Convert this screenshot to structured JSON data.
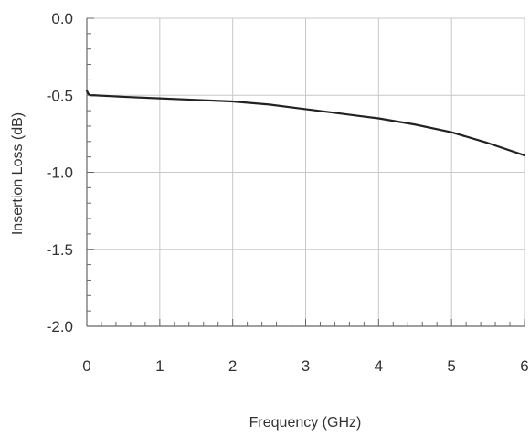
{
  "chart_data": {
    "type": "line",
    "title": "",
    "xlabel": "Frequency (GHz)",
    "ylabel": "Insertion Loss (dB)",
    "xlim": [
      0,
      6
    ],
    "ylim": [
      -2.0,
      0.0
    ],
    "x_ticks": [
      0,
      1,
      2,
      3,
      4,
      5,
      6
    ],
    "x_tick_labels": [
      "0",
      "1",
      "2",
      "3",
      "4",
      "5",
      "6"
    ],
    "y_ticks": [
      0.0,
      -0.5,
      -1.0,
      -1.5,
      -2.0
    ],
    "y_tick_labels": [
      "0.0",
      "-0.5",
      "-1.0",
      "-1.5",
      "-2.0"
    ],
    "grid": true,
    "series": [
      {
        "x": [
          0.0,
          0.02,
          0.05,
          0.1,
          0.5,
          1.0,
          1.5,
          2.0,
          2.5,
          3.0,
          3.5,
          4.0,
          4.5,
          5.0,
          5.5,
          6.0
        ],
        "y": [
          -0.47,
          -0.49,
          -0.5,
          -0.5,
          -0.51,
          -0.52,
          -0.53,
          -0.54,
          -0.56,
          -0.59,
          -0.62,
          -0.65,
          -0.69,
          -0.74,
          -0.81,
          -0.89
        ],
        "color": "#222222"
      }
    ],
    "colors": {
      "grid": "#c8c8c8",
      "axis": "#666666",
      "line": "#222222"
    }
  }
}
